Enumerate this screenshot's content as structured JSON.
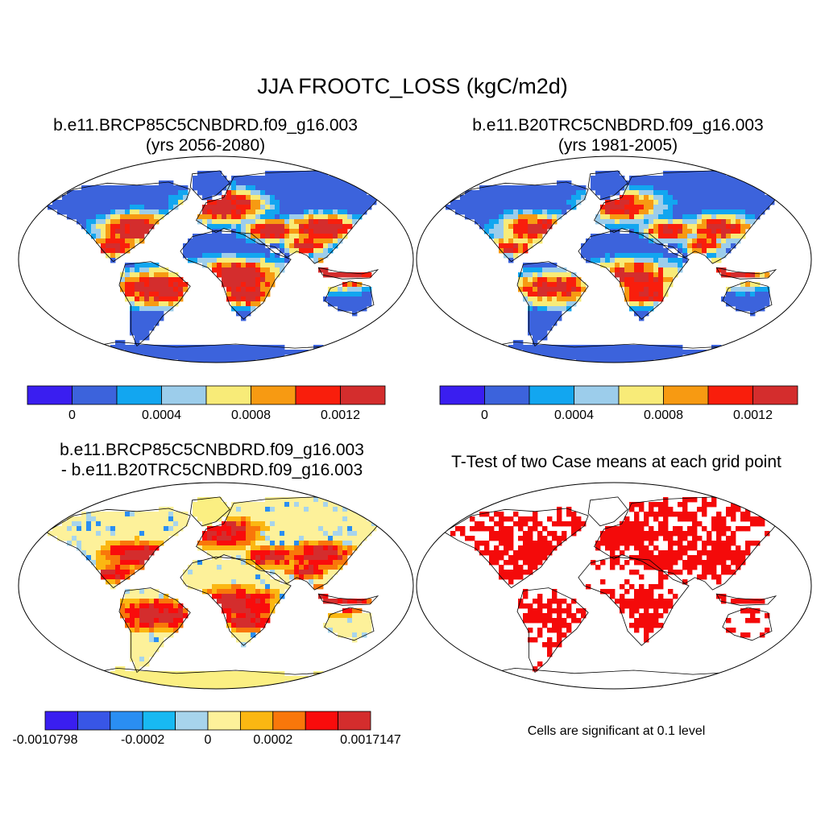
{
  "title": "JJA FROOTC_LOSS (kgC/m2d)",
  "panels": [
    {
      "line1": "b.e11.BRCP85C5CNBDRD.f09_g16.003",
      "line2": "(yrs 2056-2080)"
    },
    {
      "line1": "b.e11.B20TRC5CNBDRD.f09_g16.003",
      "line2": "(yrs 1981-2005)"
    },
    {
      "line1": "b.e11.BRCP85C5CNBDRD.f09_g16.003",
      "line2": "- b.e11.B20TRC5CNBDRD.f09_g16.003"
    },
    {
      "line1": "T-Test of two Case means at each grid point",
      "line2": ""
    }
  ],
  "colorbars": [
    {
      "colors": [
        "#3a1ef0",
        "#3c63dc",
        "#12a6f0",
        "#9ccdeb",
        "#f8eb78",
        "#f79a12",
        "#f91e0c",
        "#d42d2d"
      ],
      "ticks": [
        {
          "label": "0",
          "boundary": 1
        },
        {
          "label": "0.0004",
          "boundary": 3
        },
        {
          "label": "0.0008",
          "boundary": 5
        },
        {
          "label": "0.0012",
          "boundary": 7
        }
      ]
    },
    {
      "colors": [
        "#3a1ef0",
        "#3c63dc",
        "#12a6f0",
        "#9ccdeb",
        "#f8eb78",
        "#f79a12",
        "#f91e0c",
        "#d42d2d"
      ],
      "ticks": [
        {
          "label": "0",
          "boundary": 1
        },
        {
          "label": "0.0004",
          "boundary": 3
        },
        {
          "label": "0.0008",
          "boundary": 5
        },
        {
          "label": "0.0012",
          "boundary": 7
        }
      ]
    },
    {
      "colors": [
        "#3a1ef0",
        "#3856e6",
        "#2a8ef2",
        "#18b9f2",
        "#a7d4ec",
        "#fdf19a",
        "#fbb712",
        "#f9770a",
        "#f90c0c",
        "#d42d2d"
      ],
      "ticks": [
        {
          "label": "-0.0010798",
          "boundary": 0
        },
        {
          "label": "-0.0002",
          "boundary": 3
        },
        {
          "label": "0",
          "boundary": 5
        },
        {
          "label": "0.0002",
          "boundary": 7
        },
        {
          "label": "0.0017147",
          "boundary": 10
        }
      ]
    }
  ],
  "significance_note": "Cells are significant at 0.1 level",
  "map_colors": {
    "ocean": "#ffffff",
    "coast": "#000000",
    "significant": "#f40a0a",
    "diff_background": "#fbef82"
  }
}
